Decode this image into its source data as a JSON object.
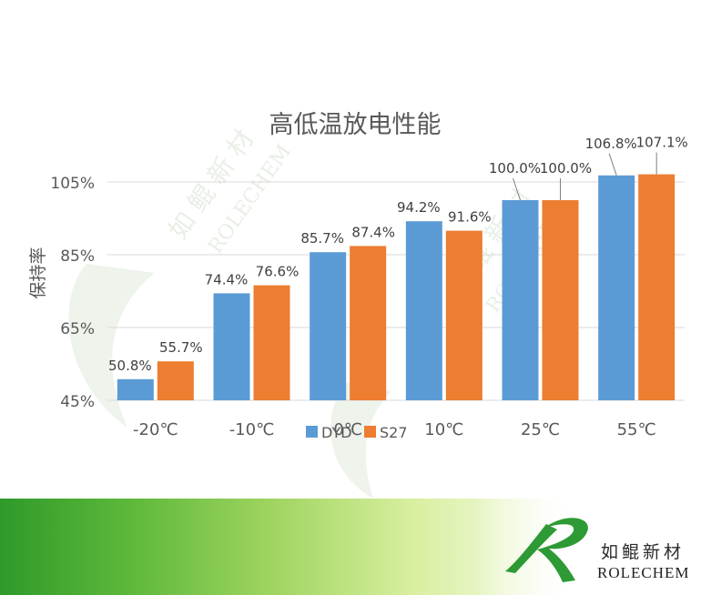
{
  "chart_data": {
    "type": "bar",
    "title": "高低温放电性能",
    "ylabel": "保持率",
    "xlabel": "",
    "categories": [
      "-20℃",
      "-10℃",
      "0℃",
      "10℃",
      "25℃",
      "55℃"
    ],
    "series": [
      {
        "name": "DYD",
        "color": "#5b9bd5",
        "values": [
          50.8,
          74.4,
          85.7,
          94.2,
          100.0,
          106.8
        ],
        "labels": [
          "50.8%",
          "74.4%",
          "85.7%",
          "94.2%",
          "100.0%",
          "106.8%"
        ]
      },
      {
        "name": "S27",
        "color": "#ed7d31",
        "values": [
          55.7,
          76.6,
          87.4,
          91.6,
          100.0,
          107.1
        ],
        "labels": [
          "55.7%",
          "76.6%",
          "87.4%",
          "91.6%",
          "100.0%",
          "107.1%"
        ]
      }
    ],
    "ylim": [
      45,
      105
    ],
    "yticks": [
      45,
      65,
      85,
      105
    ],
    "ytick_labels": [
      "45%",
      "65%",
      "85%",
      "105%"
    ],
    "grid": true,
    "legend_position": "bottom"
  },
  "branding": {
    "logo_cn": "如鲲新材",
    "logo_en": "ROLECHEM",
    "watermark_cn": "如 鲲 新 材",
    "watermark_en": "ROLECHEM",
    "logo_color": "#2e9a35",
    "footer_color": "#5cb83a"
  }
}
